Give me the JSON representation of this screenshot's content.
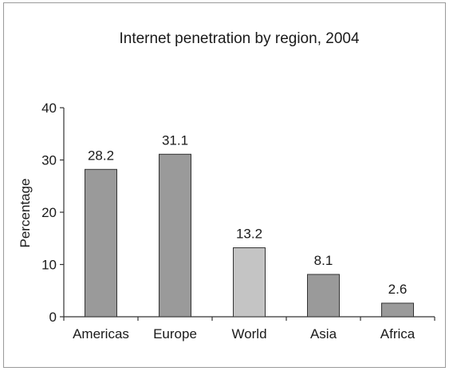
{
  "chart_data": {
    "type": "bar",
    "title": "Internet penetration by region, 2004",
    "xlabel": "",
    "ylabel": "Percentage",
    "ylim": [
      0,
      40
    ],
    "yticks": [
      0,
      10,
      20,
      30,
      40
    ],
    "categories": [
      "Americas",
      "Europe",
      "World",
      "Asia",
      "Africa"
    ],
    "values": [
      28.2,
      31.1,
      13.2,
      8.1,
      2.6
    ],
    "data_labels": [
      "28.2",
      "31.1",
      "13.2",
      "8.1",
      "2.6"
    ],
    "bar_colors": [
      "#9a9a9a",
      "#9a9a9a",
      "#c4c4c4",
      "#9a9a9a",
      "#9a9a9a"
    ],
    "grid": false,
    "legend": "none"
  }
}
